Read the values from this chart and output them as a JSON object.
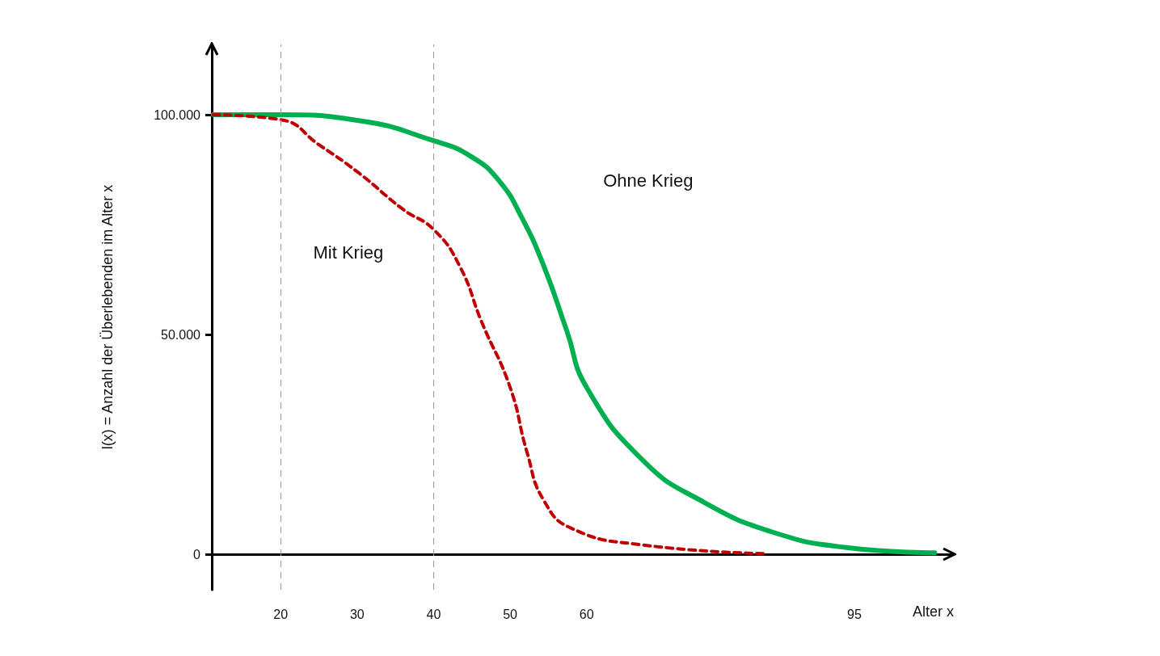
{
  "chart_data": {
    "type": "line",
    "xlabel": "Alter x",
    "ylabel": "l(x) = Anzahl der Überlebenden im Alter x",
    "xlim": [
      11,
      108
    ],
    "xticks": [
      20,
      30,
      40,
      50,
      60,
      95
    ],
    "ylim": [
      -8000,
      116000
    ],
    "yticks": [
      0,
      {
        "value": 50000,
        "label": "50.000"
      },
      {
        "value": 100000,
        "label": "100.000"
      }
    ],
    "grid": false,
    "marker": "none",
    "series": [
      {
        "color": "#00b050",
        "line_style": "solid",
        "x": [
          11.2,
          20,
          30.2,
          40,
          45,
          48.6,
          51.5,
          54.4,
          57.4,
          60,
          67.3,
          74.9,
          84.5,
          94,
          105.5
        ],
        "values": [
          100000,
          100000,
          98700,
          94100,
          90400,
          84900,
          76700,
          65600,
          50900,
          38000,
          21500,
          12300,
          5000,
          1600,
          400
        ]
      },
      {
        "color": "#c00000",
        "line_style": "dashed",
        "x": [
          11.2,
          20,
          25,
          30.2,
          36,
          40,
          43.4,
          46.3,
          50,
          52.2,
          54.4,
          58.1,
          67.3,
          83.5
        ],
        "values": [
          100000,
          98900,
          93200,
          86800,
          78500,
          73900,
          65600,
          52800,
          38000,
          23300,
          12300,
          5900,
          2200,
          200
        ]
      }
    ],
    "ref_lines": [
      {
        "axis": "x",
        "value": 20,
        "color": "#999999",
        "line_style": "dashed"
      },
      {
        "axis": "x",
        "value": 40,
        "color": "#999999",
        "line_style": "dashed"
      }
    ],
    "annotations": [
      "Ohne Krieg",
      "Mit Krieg"
    ]
  }
}
